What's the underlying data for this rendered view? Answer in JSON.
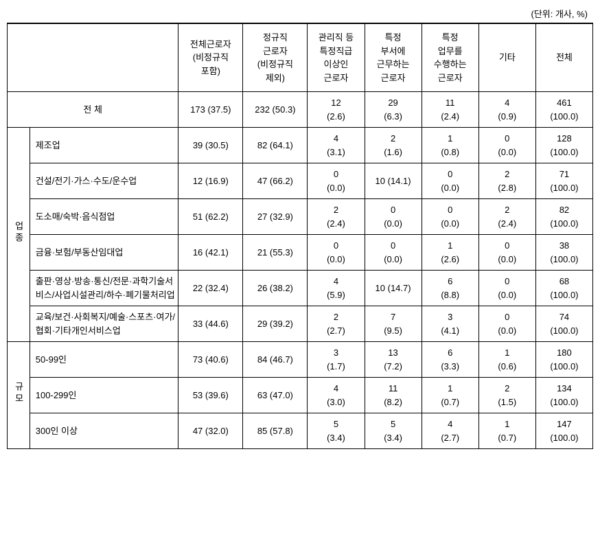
{
  "unit_label": "(단위: 개사, %)",
  "headers": {
    "corner": "",
    "col1": "전체근로자\n(비정규직\n포함)",
    "col2": "정규직\n근로자\n(비정규직\n제외)",
    "col3": "관리직 등\n특정직급\n이상인\n근로자",
    "col4": "특정\n부서에\n근무하는\n근로자",
    "col5": "특정\n업무를\n수행하는\n근로자",
    "col6": "기타",
    "col7": "전체"
  },
  "total_row": {
    "label": "전 체",
    "c1": "173 (37.5)",
    "c2": "232 (50.3)",
    "c3": "12\n(2.6)",
    "c4": "29\n(6.3)",
    "c5": "11\n(2.4)",
    "c6": "4\n(0.9)",
    "c7": "461\n(100.0)"
  },
  "group1": {
    "label": "업종",
    "rows": [
      {
        "label": "제조업",
        "c1": "39 (30.5)",
        "c2": "82 (64.1)",
        "c3": "4\n(3.1)",
        "c4": "2\n(1.6)",
        "c5": "1\n(0.8)",
        "c6": "0\n(0.0)",
        "c7": "128\n(100.0)"
      },
      {
        "label": "건설/전기·가스·수도/운수업",
        "c1": "12 (16.9)",
        "c2": "47 (66.2)",
        "c3": "0\n(0.0)",
        "c4": "10 (14.1)",
        "c5": "0\n(0.0)",
        "c6": "2\n(2.8)",
        "c7": "71\n(100.0)"
      },
      {
        "label": "도소매/숙박·음식점업",
        "c1": "51 (62.2)",
        "c2": "27 (32.9)",
        "c3": "2\n(2.4)",
        "c4": "0\n(0.0)",
        "c5": "0\n(0.0)",
        "c6": "2\n(2.4)",
        "c7": "82\n(100.0)"
      },
      {
        "label": "금융·보험/부동산임대업",
        "c1": "16 (42.1)",
        "c2": "21 (55.3)",
        "c3": "0\n(0.0)",
        "c4": "0\n(0.0)",
        "c5": "1\n(2.6)",
        "c6": "0\n(0.0)",
        "c7": "38\n(100.0)"
      },
      {
        "label": "출판·영상·방송·통신/전문·과학기술서비스/사업시설관리/하수·폐기물처리업",
        "c1": "22 (32.4)",
        "c2": "26 (38.2)",
        "c3": "4\n(5.9)",
        "c4": "10 (14.7)",
        "c5": "6\n(8.8)",
        "c6": "0\n(0.0)",
        "c7": "68\n(100.0)"
      },
      {
        "label": "교육/보건·사회복지/예술·스포츠·여가/협회·기타개인서비스업",
        "c1": "33 (44.6)",
        "c2": "29 (39.2)",
        "c3": "2\n(2.7)",
        "c4": "7\n(9.5)",
        "c5": "3\n(4.1)",
        "c6": "0\n(0.0)",
        "c7": "74\n(100.0)"
      }
    ]
  },
  "group2": {
    "label": "규모",
    "rows": [
      {
        "label": "50-99인",
        "c1": "73 (40.6)",
        "c2": "84 (46.7)",
        "c3": "3\n(1.7)",
        "c4": "13\n(7.2)",
        "c5": "6\n(3.3)",
        "c6": "1\n(0.6)",
        "c7": "180\n(100.0)"
      },
      {
        "label": "100-299인",
        "c1": "53 (39.6)",
        "c2": "63 (47.0)",
        "c3": "4\n(3.0)",
        "c4": "11\n(8.2)",
        "c5": "1\n(0.7)",
        "c6": "2\n(1.5)",
        "c7": "134\n(100.0)"
      },
      {
        "label": "300인 이상",
        "c1": "47 (32.0)",
        "c2": "85 (57.8)",
        "c3": "5\n(3.4)",
        "c4": "5\n(3.4)",
        "c5": "4\n(2.7)",
        "c6": "1\n(0.7)",
        "c7": "147\n(100.0)"
      }
    ]
  }
}
